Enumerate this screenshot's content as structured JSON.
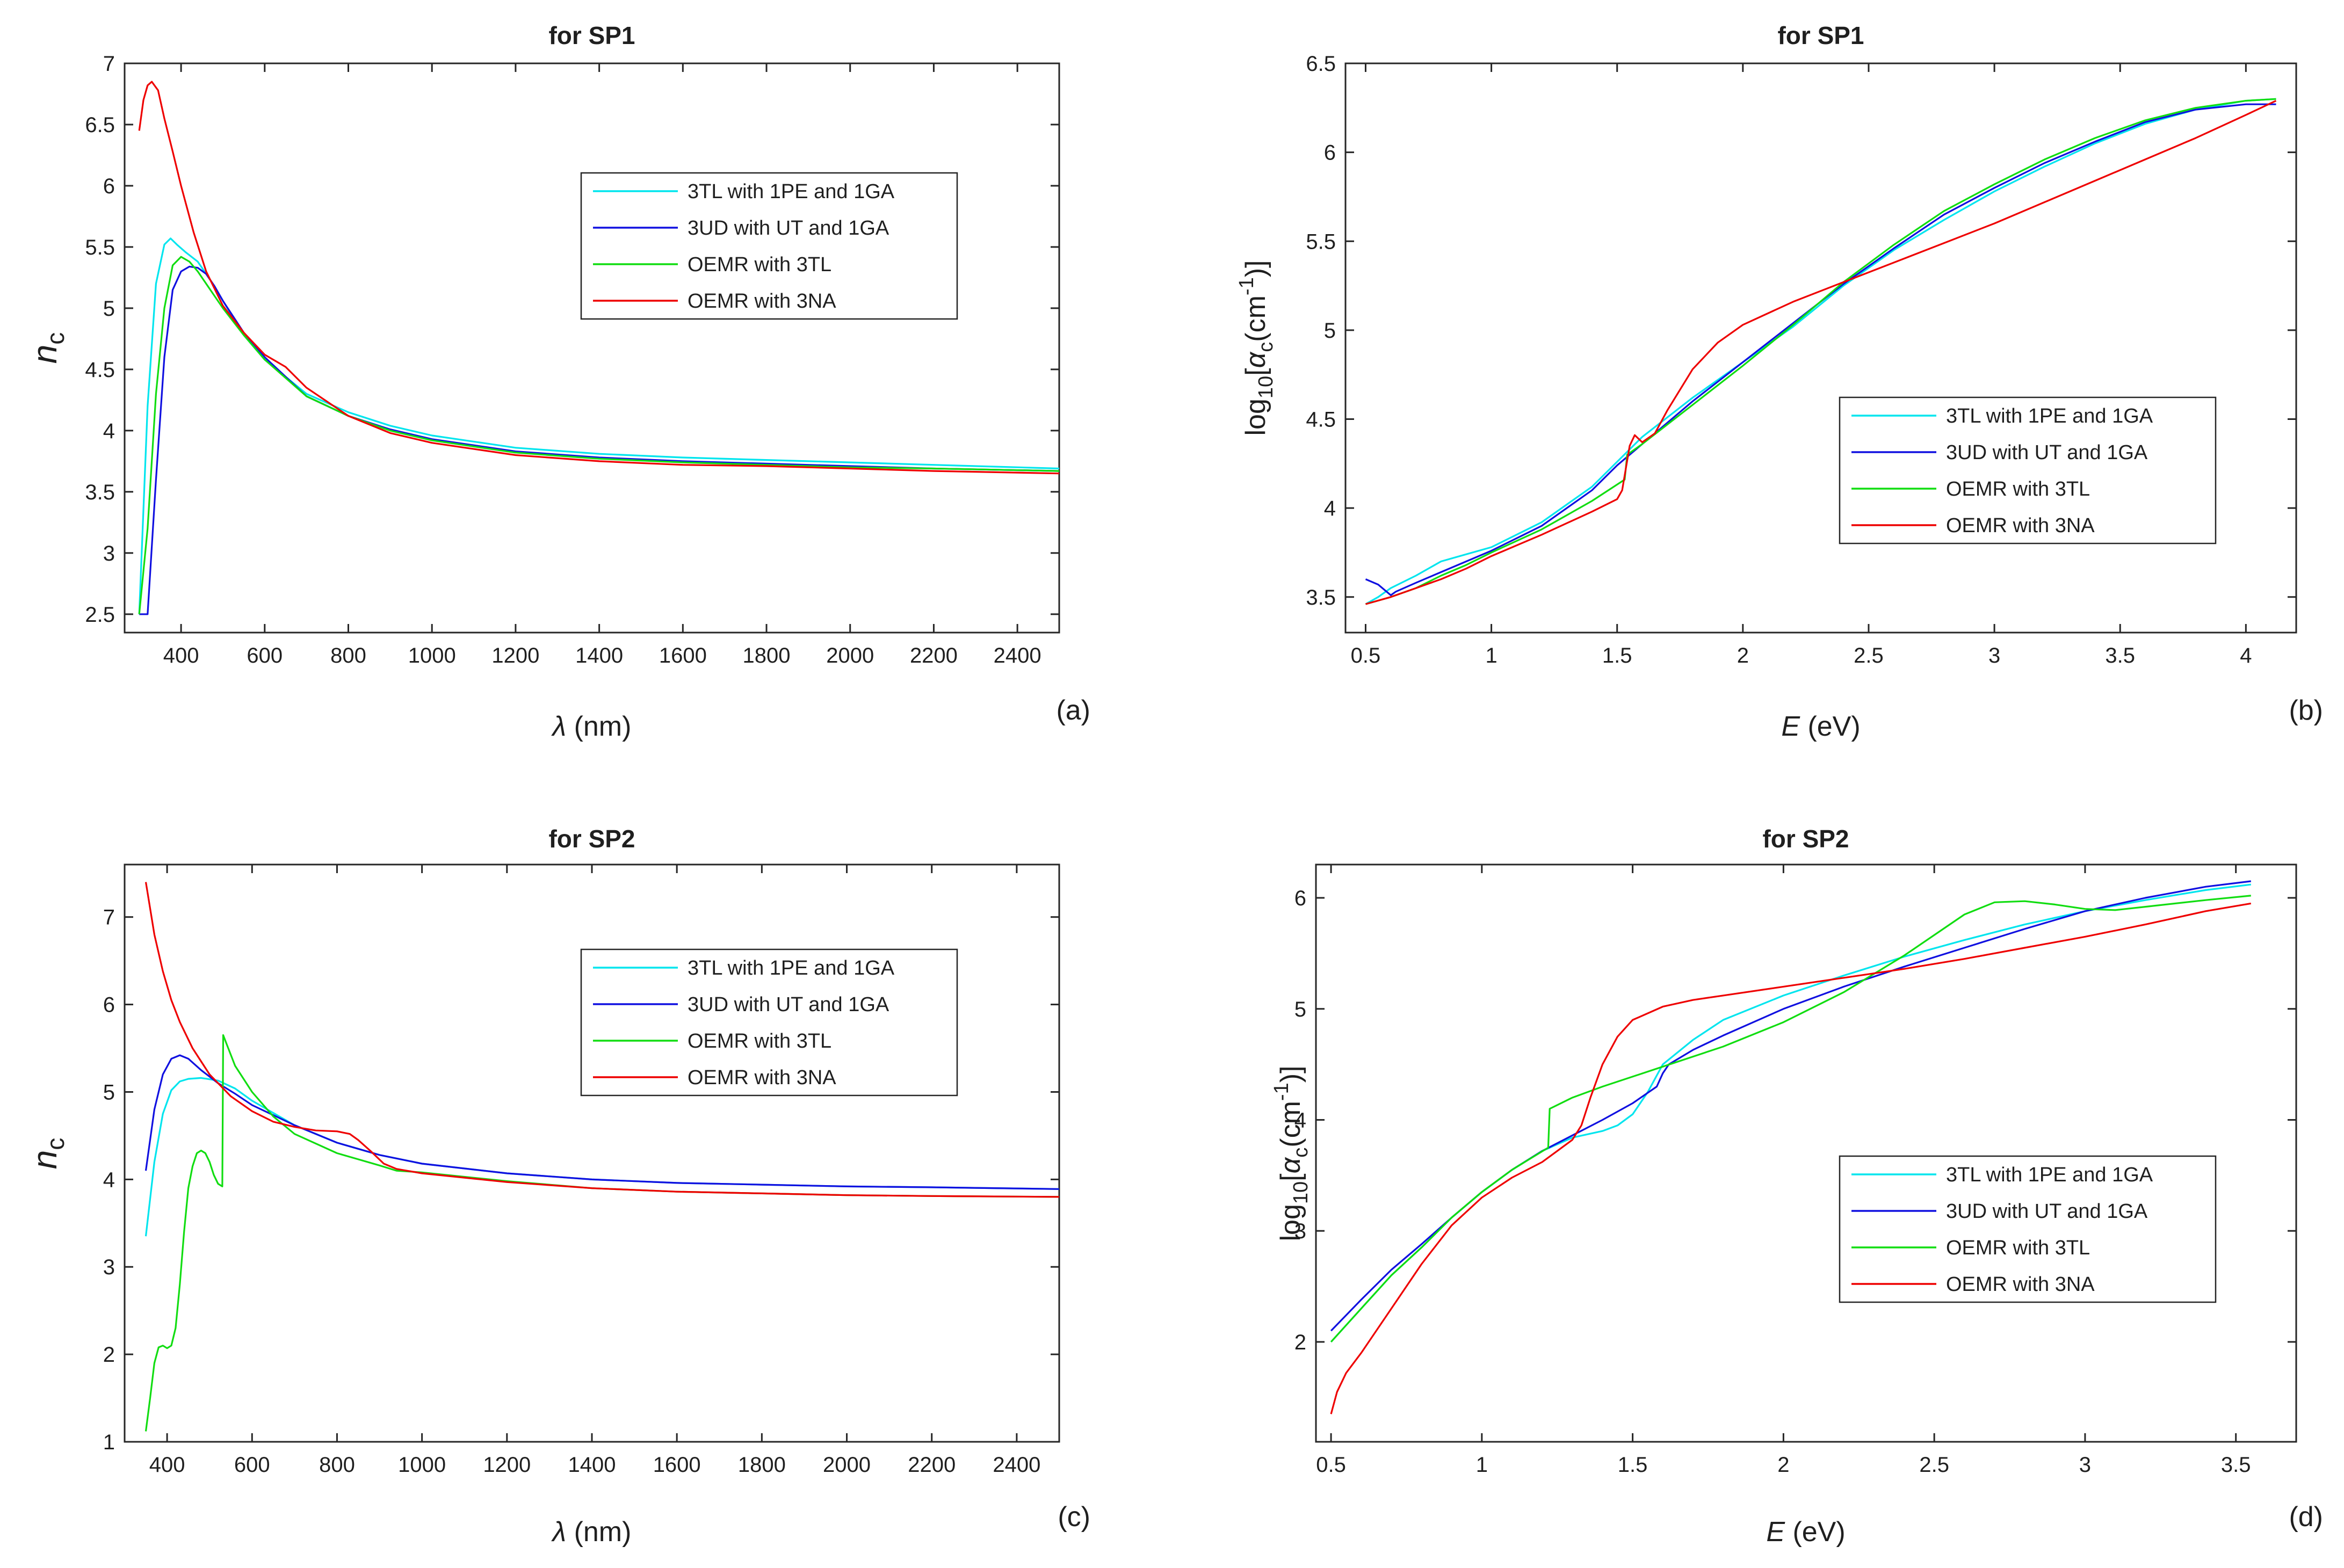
{
  "chart_data": [
    {
      "type": "line",
      "panel_label": "(a)",
      "title": "for SP1",
      "xlabel_sym": "λ",
      "xlabel_unit": " (nm)",
      "ylabel_main": "n",
      "ylabel_sub": "c",
      "xlim": [
        265,
        2500
      ],
      "ylim": [
        2.35,
        7.0
      ],
      "xticks": [
        400,
        600,
        800,
        1000,
        1200,
        1400,
        1600,
        1800,
        2000,
        2200,
        2400
      ],
      "yticks": [
        2.5,
        3,
        3.5,
        4,
        4.5,
        5,
        5.5,
        6,
        6.5,
        7
      ],
      "legend_pos": "upper-middle",
      "series": [
        {
          "name": "3TL with 1PE and 1GA",
          "color": "#00e5ee",
          "x": [
            300,
            320,
            340,
            360,
            375,
            390,
            410,
            440,
            470,
            500,
            550,
            600,
            700,
            800,
            900,
            1000,
            1200,
            1400,
            1600,
            1800,
            2000,
            2200,
            2500
          ],
          "y": [
            2.5,
            4.2,
            5.2,
            5.52,
            5.57,
            5.52,
            5.46,
            5.38,
            5.23,
            5.06,
            4.78,
            4.58,
            4.3,
            4.15,
            4.04,
            3.96,
            3.86,
            3.81,
            3.78,
            3.76,
            3.74,
            3.72,
            3.69
          ]
        },
        {
          "name": "3UD with UT and 1GA",
          "color": "#1010e0",
          "x": [
            300,
            320,
            340,
            360,
            380,
            400,
            420,
            440,
            460,
            480,
            500,
            550,
            600,
            700,
            800,
            900,
            1000,
            1200,
            1400,
            1600,
            1800,
            2000,
            2200,
            2500
          ],
          "y": [
            2.5,
            2.5,
            3.6,
            4.6,
            5.15,
            5.3,
            5.34,
            5.33,
            5.28,
            5.18,
            5.06,
            4.8,
            4.6,
            4.28,
            4.12,
            4.01,
            3.93,
            3.83,
            3.78,
            3.75,
            3.73,
            3.71,
            3.69,
            3.67
          ]
        },
        {
          "name": "OEMR with 3TL",
          "color": "#11dd11",
          "x": [
            300,
            320,
            340,
            360,
            380,
            400,
            420,
            440,
            460,
            480,
            500,
            550,
            600,
            700,
            800,
            900,
            1000,
            1200,
            1400,
            1600,
            1800,
            2000,
            2200,
            2500
          ],
          "y": [
            2.5,
            3.2,
            4.3,
            5.0,
            5.35,
            5.42,
            5.38,
            5.3,
            5.2,
            5.1,
            5.0,
            4.78,
            4.58,
            4.28,
            4.12,
            4.0,
            3.92,
            3.82,
            3.77,
            3.74,
            3.72,
            3.7,
            3.69,
            3.67
          ]
        },
        {
          "name": "OEMR with 3NA",
          "color": "#ee0000",
          "x": [
            300,
            310,
            320,
            330,
            345,
            360,
            380,
            400,
            430,
            460,
            500,
            550,
            600,
            650,
            700,
            800,
            900,
            1000,
            1200,
            1400,
            1600,
            1800,
            2000,
            2200,
            2500
          ],
          "y": [
            6.45,
            6.7,
            6.82,
            6.85,
            6.78,
            6.55,
            6.28,
            6.0,
            5.62,
            5.3,
            5.02,
            4.8,
            4.62,
            4.52,
            4.35,
            4.12,
            3.98,
            3.9,
            3.8,
            3.75,
            3.72,
            3.71,
            3.69,
            3.67,
            3.65
          ]
        }
      ]
    },
    {
      "type": "line",
      "panel_label": "(b)",
      "title": "for SP1",
      "xlabel_sym": "E",
      "xlabel_unit": " (eV)",
      "ylabel_log": "log",
      "ylabel_logsub": "10",
      "ylabel_open": "[",
      "ylabel_alpha": "α",
      "ylabel_alphasub": "c",
      "ylabel_unit": "(cm",
      "ylabel_exp": "-1",
      "ylabel_close": ")]",
      "xlim": [
        0.42,
        4.2
      ],
      "ylim": [
        3.3,
        6.5
      ],
      "xticks": [
        0.5,
        1,
        1.5,
        2,
        2.5,
        3,
        3.5,
        4
      ],
      "yticks": [
        3.5,
        4,
        4.5,
        5,
        5.5,
        6,
        6.5
      ],
      "legend_pos": "lower-right",
      "series": [
        {
          "name": "3TL with 1PE and 1GA",
          "color": "#00e5ee",
          "x": [
            0.5,
            0.55,
            0.6,
            0.7,
            0.8,
            0.9,
            1.0,
            1.2,
            1.4,
            1.5,
            1.6,
            1.8,
            2.0,
            2.2,
            2.4,
            2.6,
            2.8,
            3.0,
            3.2,
            3.4,
            3.6,
            3.8,
            4.0,
            4.12
          ],
          "y": [
            3.46,
            3.5,
            3.55,
            3.62,
            3.7,
            3.74,
            3.78,
            3.92,
            4.12,
            4.26,
            4.4,
            4.62,
            4.82,
            5.02,
            5.25,
            5.45,
            5.62,
            5.78,
            5.92,
            6.05,
            6.16,
            6.24,
            6.29,
            6.3
          ]
        },
        {
          "name": "3UD with UT and 1GA",
          "color": "#1010e0",
          "x": [
            0.5,
            0.55,
            0.6,
            0.62,
            0.7,
            0.8,
            0.9,
            1.0,
            1.2,
            1.4,
            1.5,
            1.6,
            1.8,
            2.0,
            2.2,
            2.4,
            2.6,
            2.8,
            3.0,
            3.2,
            3.4,
            3.6,
            3.8,
            4.0,
            4.12
          ],
          "y": [
            3.6,
            3.57,
            3.51,
            3.53,
            3.58,
            3.64,
            3.7,
            3.76,
            3.9,
            4.1,
            4.24,
            4.36,
            4.6,
            4.82,
            5.04,
            5.26,
            5.46,
            5.65,
            5.8,
            5.94,
            6.06,
            6.17,
            6.24,
            6.27,
            6.27
          ]
        },
        {
          "name": "OEMR with 3TL",
          "color": "#11dd11",
          "x": [
            0.5,
            0.6,
            0.7,
            0.8,
            0.9,
            1.0,
            1.2,
            1.4,
            1.53,
            1.54,
            1.6,
            1.8,
            2.0,
            2.2,
            2.4,
            2.6,
            2.8,
            3.0,
            3.2,
            3.4,
            3.6,
            3.8,
            4.0,
            4.12
          ],
          "y": [
            3.46,
            3.5,
            3.55,
            3.62,
            3.68,
            3.75,
            3.88,
            4.04,
            4.16,
            4.3,
            4.36,
            4.58,
            4.8,
            5.03,
            5.27,
            5.48,
            5.67,
            5.82,
            5.96,
            6.08,
            6.18,
            6.25,
            6.29,
            6.3
          ]
        },
        {
          "name": "OEMR with 3NA",
          "color": "#ee0000",
          "x": [
            0.5,
            0.6,
            0.7,
            0.8,
            0.9,
            1.0,
            1.2,
            1.4,
            1.5,
            1.52,
            1.55,
            1.57,
            1.6,
            1.65,
            1.7,
            1.8,
            1.9,
            2.0,
            2.2,
            2.4,
            2.6,
            2.8,
            3.0,
            3.2,
            3.4,
            3.6,
            3.8,
            4.0,
            4.12
          ],
          "y": [
            3.46,
            3.5,
            3.55,
            3.6,
            3.66,
            3.73,
            3.85,
            3.98,
            4.05,
            4.1,
            4.35,
            4.41,
            4.37,
            4.42,
            4.55,
            4.78,
            4.93,
            5.03,
            5.16,
            5.27,
            5.38,
            5.49,
            5.6,
            5.72,
            5.84,
            5.96,
            6.08,
            6.21,
            6.29
          ]
        }
      ]
    },
    {
      "type": "line",
      "panel_label": "(c)",
      "title": "for SP2",
      "xlabel_sym": "λ",
      "xlabel_unit": " (nm)",
      "ylabel_main": "n",
      "ylabel_sub": "c",
      "xlim": [
        300,
        2500
      ],
      "ylim": [
        1.0,
        7.6
      ],
      "xticks": [
        400,
        600,
        800,
        1000,
        1200,
        1400,
        1600,
        1800,
        2000,
        2200,
        2400
      ],
      "yticks": [
        1,
        2,
        3,
        4,
        5,
        6,
        7
      ],
      "legend_pos": "upper-middle",
      "series": [
        {
          "name": "3TL with 1PE and 1GA",
          "color": "#00e5ee",
          "x": [
            350,
            370,
            390,
            410,
            430,
            450,
            480,
            520,
            560,
            600,
            700,
            800,
            900,
            1000,
            1200,
            1400,
            1600,
            1800,
            2000,
            2200,
            2500
          ],
          "y": [
            3.35,
            4.2,
            4.75,
            5.02,
            5.12,
            5.15,
            5.16,
            5.13,
            5.04,
            4.9,
            4.62,
            4.42,
            4.28,
            4.18,
            4.07,
            4.0,
            3.96,
            3.94,
            3.92,
            3.91,
            3.89
          ]
        },
        {
          "name": "3UD with UT and 1GA",
          "color": "#1010e0",
          "x": [
            350,
            370,
            390,
            410,
            430,
            450,
            480,
            520,
            560,
            600,
            700,
            800,
            900,
            1000,
            1200,
            1400,
            1600,
            1800,
            2000,
            2200,
            2500
          ],
          "y": [
            4.1,
            4.8,
            5.2,
            5.38,
            5.42,
            5.38,
            5.25,
            5.1,
            4.98,
            4.85,
            4.62,
            4.42,
            4.28,
            4.18,
            4.07,
            4.0,
            3.96,
            3.94,
            3.92,
            3.91,
            3.89
          ]
        },
        {
          "name": "OEMR with 3TL",
          "color": "#11dd11",
          "x": [
            350,
            360,
            370,
            380,
            390,
            400,
            410,
            420,
            430,
            440,
            450,
            460,
            470,
            480,
            490,
            500,
            510,
            520,
            530,
            532,
            540,
            560,
            600,
            650,
            700,
            800,
            900,
            940,
            1000,
            1200,
            1400,
            1600,
            1800,
            2000,
            2200,
            2500
          ],
          "y": [
            1.12,
            1.5,
            1.9,
            2.08,
            2.1,
            2.07,
            2.1,
            2.3,
            2.8,
            3.4,
            3.9,
            4.15,
            4.3,
            4.33,
            4.3,
            4.2,
            4.05,
            3.95,
            3.92,
            5.65,
            5.55,
            5.3,
            5.0,
            4.72,
            4.52,
            4.3,
            4.16,
            4.1,
            4.08,
            3.98,
            3.9,
            3.86,
            3.84,
            3.82,
            3.81,
            3.8
          ]
        },
        {
          "name": "OEMR with 3NA",
          "color": "#ee0000",
          "x": [
            350,
            370,
            390,
            410,
            430,
            460,
            500,
            550,
            600,
            650,
            700,
            750,
            800,
            830,
            850,
            880,
            910,
            940,
            1000,
            1200,
            1400,
            1600,
            1800,
            2000,
            2200,
            2500
          ],
          "y": [
            7.4,
            6.8,
            6.38,
            6.05,
            5.8,
            5.5,
            5.2,
            4.95,
            4.78,
            4.66,
            4.6,
            4.56,
            4.55,
            4.52,
            4.45,
            4.32,
            4.18,
            4.12,
            4.07,
            3.97,
            3.9,
            3.86,
            3.84,
            3.82,
            3.81,
            3.8
          ]
        }
      ]
    },
    {
      "type": "line",
      "panel_label": "(d)",
      "title": "for SP2",
      "xlabel_sym": "E",
      "xlabel_unit": " (eV)",
      "ylabel_log": "log",
      "ylabel_logsub": "10",
      "ylabel_open": "[",
      "ylabel_alpha": "α",
      "ylabel_alphasub": "c",
      "ylabel_unit": "(cm",
      "ylabel_exp": "-1",
      "ylabel_close": ")]",
      "xlim": [
        0.45,
        3.7
      ],
      "ylim": [
        1.1,
        6.3
      ],
      "xticks": [
        0.5,
        1,
        1.5,
        2,
        2.5,
        3,
        3.5
      ],
      "yticks": [
        2,
        3,
        4,
        5,
        6
      ],
      "legend_pos": "lower-right",
      "series": [
        {
          "name": "3TL with 1PE and 1GA",
          "color": "#00e5ee",
          "x": [
            0.5,
            0.6,
            0.7,
            0.8,
            0.9,
            1.0,
            1.1,
            1.2,
            1.3,
            1.4,
            1.45,
            1.5,
            1.55,
            1.6,
            1.7,
            1.8,
            2.0,
            2.2,
            2.4,
            2.6,
            2.8,
            3.0,
            3.2,
            3.4,
            3.55
          ],
          "y": [
            2.0,
            2.3,
            2.6,
            2.85,
            3.12,
            3.35,
            3.55,
            3.72,
            3.84,
            3.9,
            3.95,
            4.05,
            4.25,
            4.5,
            4.72,
            4.9,
            5.12,
            5.3,
            5.47,
            5.62,
            5.76,
            5.88,
            5.98,
            6.07,
            6.12
          ]
        },
        {
          "name": "3UD with UT and 1GA",
          "color": "#1010e0",
          "x": [
            0.5,
            0.6,
            0.7,
            0.8,
            0.9,
            1.0,
            1.1,
            1.2,
            1.3,
            1.4,
            1.5,
            1.58,
            1.6,
            1.62,
            1.7,
            1.8,
            2.0,
            2.2,
            2.4,
            2.6,
            2.8,
            3.0,
            3.2,
            3.4,
            3.55
          ],
          "y": [
            2.1,
            2.38,
            2.65,
            2.88,
            3.12,
            3.35,
            3.55,
            3.72,
            3.86,
            4.0,
            4.15,
            4.3,
            4.42,
            4.5,
            4.63,
            4.76,
            5.0,
            5.2,
            5.38,
            5.55,
            5.72,
            5.88,
            6.0,
            6.1,
            6.15
          ]
        },
        {
          "name": "OEMR with 3TL",
          "color": "#11dd11",
          "x": [
            0.5,
            0.6,
            0.7,
            0.8,
            0.9,
            1.0,
            1.1,
            1.22,
            1.225,
            1.3,
            1.4,
            1.6,
            1.8,
            2.0,
            2.2,
            2.4,
            2.6,
            2.7,
            2.8,
            2.9,
            3.0,
            3.1,
            3.2,
            3.4,
            3.55
          ],
          "y": [
            2.0,
            2.3,
            2.6,
            2.85,
            3.12,
            3.35,
            3.55,
            3.75,
            4.1,
            4.2,
            4.3,
            4.48,
            4.66,
            4.88,
            5.15,
            5.48,
            5.85,
            5.96,
            5.97,
            5.94,
            5.9,
            5.89,
            5.92,
            5.98,
            6.02
          ]
        },
        {
          "name": "OEMR with 3NA",
          "color": "#ee0000",
          "x": [
            0.5,
            0.52,
            0.55,
            0.6,
            0.7,
            0.8,
            0.9,
            1.0,
            1.1,
            1.2,
            1.25,
            1.3,
            1.33,
            1.36,
            1.4,
            1.45,
            1.5,
            1.6,
            1.7,
            1.8,
            2.0,
            2.2,
            2.4,
            2.6,
            2.8,
            3.0,
            3.2,
            3.4,
            3.55
          ],
          "y": [
            1.35,
            1.55,
            1.72,
            1.9,
            2.3,
            2.7,
            3.05,
            3.3,
            3.48,
            3.62,
            3.72,
            3.82,
            3.95,
            4.2,
            4.5,
            4.75,
            4.9,
            5.02,
            5.08,
            5.12,
            5.2,
            5.28,
            5.36,
            5.45,
            5.55,
            5.65,
            5.76,
            5.88,
            5.95
          ]
        }
      ]
    }
  ]
}
